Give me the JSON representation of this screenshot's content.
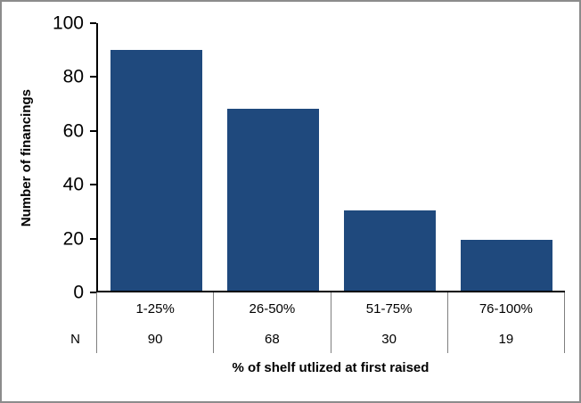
{
  "chart_data": {
    "type": "bar",
    "title": "",
    "categories": [
      "1-25%",
      "26-50%",
      "51-75%",
      "76-100%"
    ],
    "values": [
      90,
      68,
      30,
      19
    ],
    "series_label": "Number of financings",
    "n_row_label": "N",
    "n_values": [
      90,
      68,
      30,
      19
    ],
    "xlabel": "% of shelf utlized at first raised",
    "ylabel": "Number of financings",
    "ylim": [
      0,
      100
    ],
    "y_ticks": [
      100,
      80,
      60,
      40,
      20,
      0
    ],
    "bar_color": "#1F497D",
    "axis_color": "#000000",
    "frame_border_color": "#8C8C8C",
    "grid": false,
    "legend_position": "none"
  }
}
